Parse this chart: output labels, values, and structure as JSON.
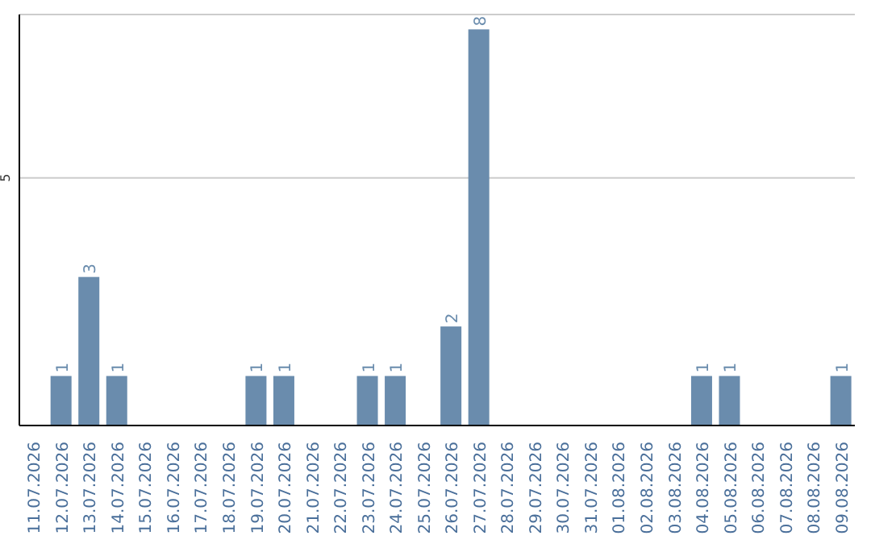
{
  "chart_data": {
    "type": "bar",
    "categories": [
      "11.07.2026",
      "12.07.2026",
      "13.07.2026",
      "14.07.2026",
      "15.07.2026",
      "16.07.2026",
      "17.07.2026",
      "18.07.2026",
      "19.07.2026",
      "20.07.2026",
      "21.07.2026",
      "22.07.2026",
      "23.07.2026",
      "24.07.2026",
      "25.07.2026",
      "26.07.2026",
      "27.07.2026",
      "28.07.2026",
      "29.07.2026",
      "30.07.2026",
      "31.07.2026",
      "01.08.2026",
      "02.08.2026",
      "03.08.2026",
      "04.08.2026",
      "05.08.2026",
      "06.08.2026",
      "07.08.2026",
      "08.08.2026",
      "09.08.2026"
    ],
    "values": [
      0,
      1,
      3,
      1,
      0,
      0,
      0,
      0,
      1,
      1,
      0,
      0,
      1,
      1,
      0,
      2,
      8,
      0,
      0,
      0,
      0,
      0,
      0,
      0,
      1,
      1,
      0,
      0,
      0,
      1
    ],
    "value_labels": [
      null,
      "1",
      "3",
      "1",
      null,
      null,
      null,
      null,
      "1",
      "1",
      null,
      null,
      "1",
      "1",
      null,
      "2",
      "8",
      null,
      null,
      null,
      null,
      null,
      null,
      null,
      "1",
      "1",
      null,
      null,
      null,
      "1"
    ],
    "color": "#6a8cad",
    "ylim": [
      0,
      8.3
    ],
    "yticks": [
      5
    ],
    "grid": "y"
  }
}
